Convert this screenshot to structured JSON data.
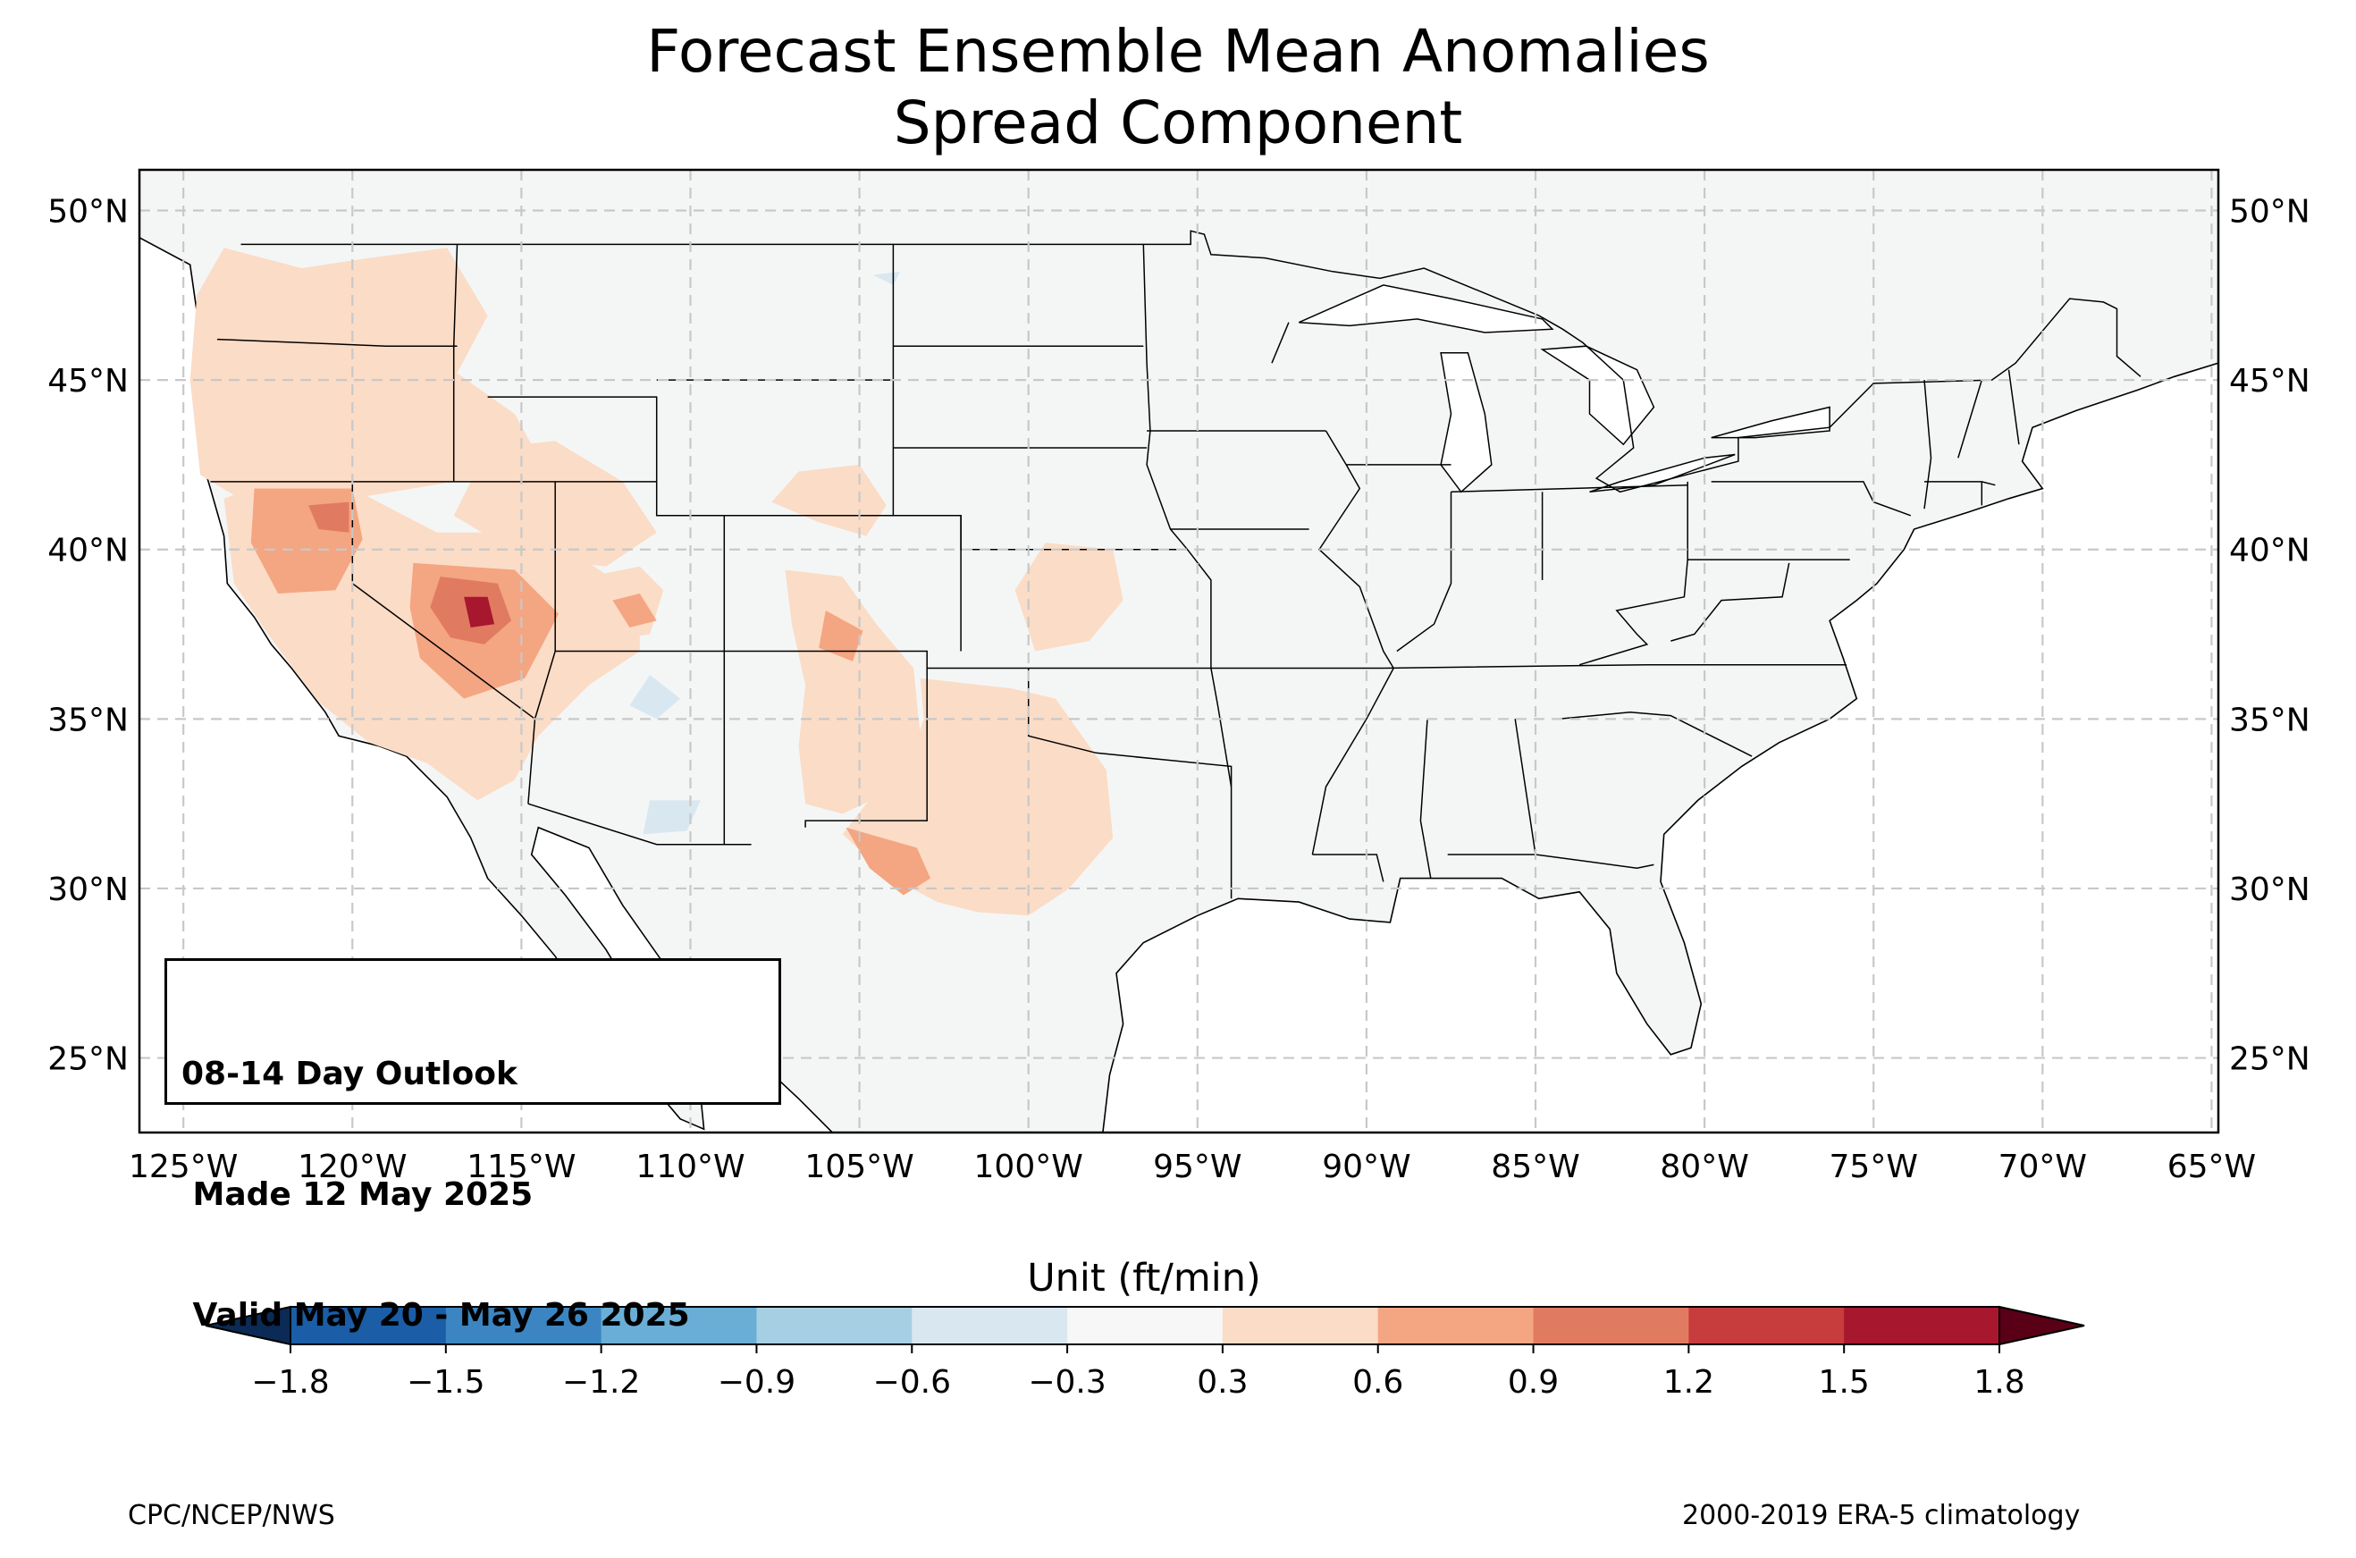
{
  "title": {
    "line1": "Forecast Ensemble Mean Anomalies",
    "line2": "Spread Component"
  },
  "map": {
    "projection": "PlateCarree",
    "extent_lon": [
      -126.3,
      -64.8
    ],
    "extent_lat": [
      22.8,
      51.2
    ],
    "lat_ticks": [
      25,
      30,
      35,
      40,
      45,
      50
    ],
    "lat_labels": [
      "25°N",
      "30°N",
      "35°N",
      "40°N",
      "45°N",
      "50°N"
    ],
    "lon_ticks": [
      -125,
      -120,
      -115,
      -110,
      -105,
      -100,
      -95,
      -90,
      -85,
      -80,
      -75,
      -70,
      -65
    ],
    "lon_labels": [
      "125°W",
      "120°W",
      "115°W",
      "110°W",
      "105°W",
      "100°W",
      "95°W",
      "90°W",
      "85°W",
      "80°W",
      "75°W",
      "70°W",
      "65°W"
    ],
    "land_color": "#f4f6f6",
    "gridlines": "dashed gray",
    "anomaly_regions": [
      {
        "name": "Pacific Northwest / Oregon",
        "level": 0.45,
        "polygon": [
          [
            -123.8,
            48.9
          ],
          [
            -121.5,
            48.3
          ],
          [
            -119.5,
            48.6
          ],
          [
            -117.2,
            48.9
          ],
          [
            -116.0,
            46.9
          ],
          [
            -116.9,
            45.2
          ],
          [
            -115.2,
            44.0
          ],
          [
            -114.2,
            42.2
          ],
          [
            -117.0,
            42.0
          ],
          [
            -120.0,
            41.5
          ],
          [
            -122.5,
            41.0
          ],
          [
            -124.5,
            42.2
          ],
          [
            -124.8,
            45.0
          ],
          [
            -124.6,
            47.5
          ]
        ]
      },
      {
        "name": "Northern Nevada / Idaho",
        "level": 0.45,
        "polygon": [
          [
            -116.0,
            43.0
          ],
          [
            -114.0,
            43.2
          ],
          [
            -112.0,
            42.0
          ],
          [
            -111.0,
            40.5
          ],
          [
            -112.5,
            39.5
          ],
          [
            -115.0,
            39.8
          ],
          [
            -117.0,
            41.0
          ]
        ]
      },
      {
        "name": "California / Nevada",
        "level": 0.45,
        "polygon": [
          [
            -123.8,
            41.5
          ],
          [
            -122.5,
            42.0
          ],
          [
            -120.0,
            41.8
          ],
          [
            -117.5,
            40.5
          ],
          [
            -115.0,
            40.5
          ],
          [
            -113.3,
            39.8
          ],
          [
            -111.5,
            38.6
          ],
          [
            -111.5,
            37.0
          ],
          [
            -113.0,
            36.0
          ],
          [
            -114.5,
            34.5
          ],
          [
            -115.2,
            33.2
          ],
          [
            -116.3,
            32.6
          ],
          [
            -117.8,
            33.7
          ],
          [
            -119.5,
            34.3
          ],
          [
            -121.0,
            35.5
          ],
          [
            -122.5,
            37.5
          ],
          [
            -123.5,
            39.0
          ]
        ]
      },
      {
        "name": "Central Utah",
        "level": 0.45,
        "polygon": [
          [
            -113.0,
            39.2
          ],
          [
            -111.5,
            39.5
          ],
          [
            -110.8,
            38.8
          ],
          [
            -111.2,
            37.5
          ],
          [
            -112.5,
            37.3
          ],
          [
            -113.3,
            38.0
          ]
        ]
      },
      {
        "name": "Colorado / New Mexico",
        "level": 0.45,
        "polygon": [
          [
            -107.2,
            39.4
          ],
          [
            -105.5,
            39.2
          ],
          [
            -104.5,
            37.8
          ],
          [
            -103.4,
            36.5
          ],
          [
            -103.2,
            34.5
          ],
          [
            -103.8,
            33.0
          ],
          [
            -105.5,
            32.2
          ],
          [
            -106.6,
            32.5
          ],
          [
            -106.8,
            34.2
          ],
          [
            -106.6,
            36.0
          ],
          [
            -107.0,
            37.8
          ]
        ]
      },
      {
        "name": "Wyoming / Colorado border",
        "level": 0.45,
        "polygon": [
          [
            -106.8,
            42.3
          ],
          [
            -105.0,
            42.5
          ],
          [
            -104.2,
            41.3
          ],
          [
            -104.8,
            40.4
          ],
          [
            -106.2,
            40.8
          ],
          [
            -107.6,
            41.4
          ]
        ]
      },
      {
        "name": "Texas / Southern Plains",
        "level": 0.45,
        "polygon": [
          [
            -103.2,
            36.2
          ],
          [
            -100.5,
            35.9
          ],
          [
            -99.2,
            35.6
          ],
          [
            -97.7,
            33.5
          ],
          [
            -97.5,
            31.5
          ],
          [
            -98.8,
            30.0
          ],
          [
            -100.0,
            29.2
          ],
          [
            -101.5,
            29.3
          ],
          [
            -102.7,
            29.6
          ],
          [
            -104.2,
            30.4
          ],
          [
            -105.5,
            31.6
          ],
          [
            -104.8,
            32.5
          ],
          [
            -103.5,
            33.8
          ],
          [
            -103.1,
            35.0
          ]
        ]
      },
      {
        "name": "Kansas",
        "level": 0.45,
        "polygon": [
          [
            -99.5,
            40.2
          ],
          [
            -97.5,
            40.0
          ],
          [
            -97.2,
            38.5
          ],
          [
            -98.2,
            37.3
          ],
          [
            -99.8,
            37.0
          ],
          [
            -100.4,
            38.8
          ]
        ]
      },
      {
        "name": "West Texas",
        "level": 0.75,
        "polygon": [
          [
            -105.4,
            31.8
          ],
          [
            -103.3,
            31.2
          ],
          [
            -102.9,
            30.3
          ],
          [
            -103.7,
            29.8
          ],
          [
            -104.7,
            30.6
          ]
        ]
      },
      {
        "name": "Northern California",
        "level": 0.75,
        "polygon": [
          [
            -122.9,
            41.8
          ],
          [
            -120.0,
            41.8
          ],
          [
            -119.7,
            40.3
          ],
          [
            -120.5,
            38.8
          ],
          [
            -122.2,
            38.7
          ],
          [
            -123.0,
            40.2
          ]
        ]
      },
      {
        "name": "Central Nevada",
        "level": 0.75,
        "polygon": [
          [
            -118.2,
            39.6
          ],
          [
            -115.2,
            39.4
          ],
          [
            -113.9,
            38.1
          ],
          [
            -114.9,
            36.2
          ],
          [
            -116.7,
            35.6
          ],
          [
            -118.0,
            36.8
          ],
          [
            -118.3,
            38.3
          ]
        ]
      },
      {
        "name": "Southern Colorado",
        "level": 0.75,
        "polygon": [
          [
            -106.0,
            38.2
          ],
          [
            -104.9,
            37.6
          ],
          [
            -105.2,
            36.7
          ],
          [
            -106.2,
            37.1
          ]
        ]
      },
      {
        "name": "Eastern Utah",
        "level": 0.75,
        "polygon": [
          [
            -112.3,
            38.5
          ],
          [
            -111.5,
            38.7
          ],
          [
            -111.0,
            37.9
          ],
          [
            -111.8,
            37.7
          ]
        ]
      },
      {
        "name": "Nevada core",
        "level": 1.05,
        "polygon": [
          [
            -117.4,
            39.2
          ],
          [
            -115.7,
            39.0
          ],
          [
            -115.3,
            37.9
          ],
          [
            -116.1,
            37.2
          ],
          [
            -117.1,
            37.4
          ],
          [
            -117.7,
            38.3
          ]
        ]
      },
      {
        "name": "NE California",
        "level": 1.05,
        "polygon": [
          [
            -121.3,
            41.3
          ],
          [
            -120.1,
            41.4
          ],
          [
            -120.1,
            40.5
          ],
          [
            -121.0,
            40.6
          ]
        ]
      },
      {
        "name": "Nevada max",
        "level": 1.6,
        "polygon": [
          [
            -116.7,
            38.6
          ],
          [
            -116.0,
            38.6
          ],
          [
            -115.8,
            37.8
          ],
          [
            -116.5,
            37.7
          ]
        ]
      },
      {
        "name": "Arizona negative",
        "level": -0.45,
        "polygon": [
          [
            -111.2,
            36.3
          ],
          [
            -110.3,
            35.6
          ],
          [
            -111.0,
            35.0
          ],
          [
            -111.8,
            35.4
          ]
        ]
      },
      {
        "name": "Southern Arizona negative",
        "level": -0.45,
        "polygon": [
          [
            -111.2,
            32.6
          ],
          [
            -109.7,
            32.6
          ],
          [
            -110.1,
            31.7
          ],
          [
            -111.4,
            31.6
          ]
        ]
      },
      {
        "name": "Wyoming negative",
        "level": -0.45,
        "polygon": [
          [
            -104.6,
            48.1
          ],
          [
            -103.8,
            48.2
          ],
          [
            -104.0,
            47.8
          ]
        ]
      }
    ]
  },
  "outlook_box": {
    "line1": "08-14 Day Outlook",
    "line2": " Made 12 May 2025",
    "line3": " Valid May 20 - May 26 2025"
  },
  "colorbar": {
    "label": "Unit (ft/min)",
    "levels": [
      -1.8,
      -1.5,
      -1.2,
      -0.9,
      -0.6,
      -0.3,
      0.3,
      0.6,
      0.9,
      1.2,
      1.5,
      1.8
    ],
    "tick_labels": [
      "−1.8",
      "−1.5",
      "−1.2",
      "−0.9",
      "−0.6",
      "−0.3",
      "0.3",
      "0.6",
      "0.9",
      "1.2",
      "1.5",
      "1.8"
    ],
    "colors": [
      "#1b5da6",
      "#3b86c2",
      "#6aaed6",
      "#a7cfe3",
      "#d9e7f0",
      "#f7f7f7",
      "#fbdcc6",
      "#f4a582",
      "#e07b62",
      "#c73c3d",
      "#a7172e"
    ],
    "extend_low_color": "#0b2a55",
    "extend_high_color": "#5a0016"
  },
  "credits": {
    "left": "CPC/NCEP/NWS",
    "right": "2000-2019 ERA-5 climatology"
  }
}
